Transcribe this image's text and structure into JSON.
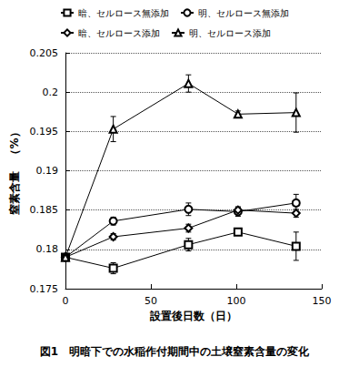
{
  "chart_data": {
    "type": "line",
    "title": "図1　明暗下での水稲作付期間中の土壌窒素含量の変化",
    "x_label": "設置後日数（日）",
    "y_label": "窒素含量　（%）",
    "x": [
      0,
      28,
      72,
      101,
      135
    ],
    "xlim": [
      0,
      150
    ],
    "xticks": [
      0,
      50,
      100,
      150
    ],
    "ylim": [
      0.175,
      0.205
    ],
    "yticks": [
      0.175,
      0.18,
      0.185,
      0.19,
      0.195,
      0.2,
      0.205
    ],
    "grid": true,
    "legend": "top",
    "series": [
      {
        "name": "暗、セルロース無添加",
        "color": "#000000",
        "marker": "square",
        "line_style": "solid",
        "values": [
          0.179,
          0.1776,
          0.1806,
          0.1822,
          0.1804
        ],
        "error": [
          0.0002,
          0.0007,
          0.0008,
          0.0003,
          0.0018
        ]
      },
      {
        "name": "明、セルロース無添加",
        "color": "#000000",
        "marker": "circle",
        "line_style": "solid",
        "values": [
          0.179,
          0.1836,
          0.1851,
          0.1848,
          0.1859
        ],
        "error": [
          0.0002,
          0.0005,
          0.0008,
          0.0006,
          0.0011
        ]
      },
      {
        "name": "暗、セルロース添加",
        "color": "#000000",
        "marker": "diamond",
        "line_style": "solid",
        "values": [
          0.179,
          0.1816,
          0.1827,
          0.185,
          0.1846
        ],
        "error": [
          0.0002,
          0.0004,
          0.0005,
          0.0004,
          0.0005
        ]
      },
      {
        "name": "明、セルロース添加",
        "color": "#000000",
        "marker": "triangle",
        "line_style": "solid",
        "values": [
          0.179,
          0.1953,
          0.2011,
          0.1972,
          0.1974
        ],
        "error": [
          0.0002,
          0.0016,
          0.0011,
          0.0004,
          0.0025
        ]
      }
    ]
  }
}
